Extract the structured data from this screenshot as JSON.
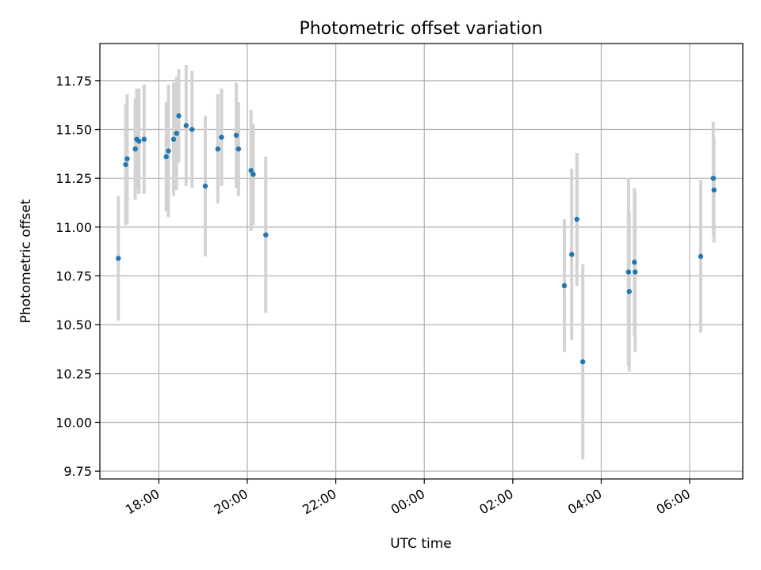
{
  "chart_data": {
    "type": "scatter",
    "title": "Photometric offset variation",
    "xlabel": "UTC time",
    "ylabel": "Photometric offset",
    "x_axis_type": "time",
    "xlim": [
      "16:40",
      "07:12"
    ],
    "ylim": [
      9.71,
      11.94
    ],
    "x_ticks": [
      "18:00",
      "20:00",
      "22:00",
      "00:00",
      "02:00",
      "04:00",
      "06:00"
    ],
    "y_ticks": [
      "9.75",
      "10.00",
      "10.25",
      "10.50",
      "10.75",
      "11.00",
      "11.25",
      "11.50",
      "11.75"
    ],
    "grid": true,
    "marker_color": "#1f77b4",
    "errorbar_color": "#d3d3d3",
    "points": [
      {
        "x": "17:05",
        "y": 10.84,
        "err": 0.32
      },
      {
        "x": "17:15",
        "y": 11.32,
        "err": 0.31
      },
      {
        "x": "17:17",
        "y": 11.35,
        "err": 0.33
      },
      {
        "x": "17:28",
        "y": 11.4,
        "err": 0.26
      },
      {
        "x": "17:30",
        "y": 11.45,
        "err": 0.26
      },
      {
        "x": "17:33",
        "y": 11.44,
        "err": 0.27
      },
      {
        "x": "17:40",
        "y": 11.45,
        "err": 0.28
      },
      {
        "x": "18:10",
        "y": 11.36,
        "err": 0.28
      },
      {
        "x": "18:13",
        "y": 11.39,
        "err": 0.34
      },
      {
        "x": "18:20",
        "y": 11.45,
        "err": 0.29
      },
      {
        "x": "18:24",
        "y": 11.48,
        "err": 0.29
      },
      {
        "x": "18:27",
        "y": 11.57,
        "err": 0.24
      },
      {
        "x": "18:37",
        "y": 11.52,
        "err": 0.31
      },
      {
        "x": "18:45",
        "y": 11.5,
        "err": 0.3
      },
      {
        "x": "19:03",
        "y": 11.21,
        "err": 0.36
      },
      {
        "x": "19:20",
        "y": 11.4,
        "err": 0.28
      },
      {
        "x": "19:25",
        "y": 11.46,
        "err": 0.25
      },
      {
        "x": "19:45",
        "y": 11.47,
        "err": 0.27
      },
      {
        "x": "19:48",
        "y": 11.4,
        "err": 0.24
      },
      {
        "x": "20:05",
        "y": 11.29,
        "err": 0.31
      },
      {
        "x": "20:08",
        "y": 11.27,
        "err": 0.26
      },
      {
        "x": "20:25",
        "y": 10.96,
        "err": 0.4
      },
      {
        "x": "03:10",
        "y": 10.7,
        "err": 0.34
      },
      {
        "x": "03:20",
        "y": 10.86,
        "err": 0.44
      },
      {
        "x": "03:27",
        "y": 11.04,
        "err": 0.34
      },
      {
        "x": "03:35",
        "y": 10.31,
        "err": 0.5
      },
      {
        "x": "04:37",
        "y": 10.77,
        "err": 0.48
      },
      {
        "x": "04:38",
        "y": 10.67,
        "err": 0.41
      },
      {
        "x": "04:45",
        "y": 10.82,
        "err": 0.38
      },
      {
        "x": "04:46",
        "y": 10.77,
        "err": 0.41
      },
      {
        "x": "06:15",
        "y": 10.85,
        "err": 0.39
      },
      {
        "x": "06:32",
        "y": 11.25,
        "err": 0.29
      },
      {
        "x": "06:33",
        "y": 11.19,
        "err": 0.27
      }
    ]
  }
}
